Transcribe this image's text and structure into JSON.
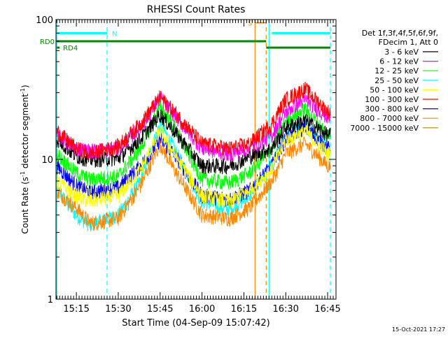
{
  "chart_data": {
    "type": "line",
    "title": "RHESSI Count Rates",
    "xlabel": "Start Time (04-Sep-09 15:07:42)",
    "ylabel_main": "Count Rate (s",
    "ylabel_sup1": "-1",
    "ylabel_mid": " detector segment",
    "ylabel_sup2": "-1",
    "ylabel_end": ")",
    "y_scale": "log",
    "ylim": [
      1,
      100
    ],
    "xlim": [
      "15:07:42",
      "16:48:00"
    ],
    "y_ticks": [
      {
        "value": 1,
        "label": "1"
      },
      {
        "value": 10,
        "label": "10"
      },
      {
        "value": 100,
        "label": "100"
      }
    ],
    "x_ticks": [
      {
        "time": "15:15",
        "label": "15:15"
      },
      {
        "time": "15:30",
        "label": "15:30"
      },
      {
        "time": "15:45",
        "label": "15:45"
      },
      {
        "time": "16:00",
        "label": "16:00"
      },
      {
        "time": "16:15",
        "label": "16:15"
      },
      {
        "time": "16:30",
        "label": "16:30"
      },
      {
        "time": "16:45",
        "label": "16:45"
      }
    ],
    "legend_header": [
      "Det 1f,3f,4f,5f,6f,9f,",
      "FDecim 1, Att 0"
    ],
    "legend_position": "right",
    "x_sample_times": [
      "15:08",
      "15:15",
      "15:20",
      "15:30",
      "15:38",
      "15:45",
      "15:50",
      "16:00",
      "16:10",
      "16:17",
      "16:25",
      "16:30",
      "16:37",
      "16:45"
    ],
    "series": [
      {
        "name": "3 - 6 keV",
        "color": "#000000",
        "values": [
          14,
          10.5,
          10,
          10.2,
          14,
          21,
          16,
          9,
          9,
          10.5,
          12,
          17,
          19,
          15
        ]
      },
      {
        "name": "6 - 12 keV",
        "color": "#ff00ff",
        "values": [
          15,
          12,
          11.5,
          12,
          17,
          28,
          21,
          12,
          11,
          12,
          15,
          22,
          27,
          20
        ]
      },
      {
        "name": "12 - 25 keV",
        "color": "#00ff00",
        "values": [
          11,
          8,
          7.2,
          7.6,
          12,
          24,
          17,
          7.2,
          6.8,
          8,
          12,
          19,
          23,
          15
        ]
      },
      {
        "name": "25 - 50 keV",
        "color": "#00ffff",
        "values": [
          6,
          4,
          3.4,
          4,
          7,
          18,
          12,
          5,
          4.4,
          5.5,
          9,
          15,
          18,
          12
        ]
      },
      {
        "name": "50 - 100 keV",
        "color": "#ffff00",
        "values": [
          7,
          5.5,
          5,
          5.5,
          8.5,
          16,
          11,
          5.5,
          5,
          6,
          8.5,
          14,
          16,
          11
        ]
      },
      {
        "name": "100 - 300 keV",
        "color": "#ff0000",
        "values": [
          16,
          12,
          11,
          12.5,
          18,
          28,
          22,
          13,
          12,
          13,
          18,
          27,
          32,
          22
        ]
      },
      {
        "name": "300 - 800 keV",
        "color": "#0000ff",
        "values": [
          9,
          6.5,
          5.8,
          6.3,
          9,
          14,
          11,
          5.5,
          5.2,
          6,
          9,
          14,
          17,
          12
        ]
      },
      {
        "name": "800 - 7000 keV",
        "color": "#ff8800",
        "values": [
          6,
          4.5,
          3.5,
          3.8,
          6.5,
          13,
          8.5,
          4,
          3.8,
          4.5,
          7,
          11,
          13,
          9
        ]
      },
      {
        "name": "7000 - 15000 keV",
        "color": "#aa8800",
        "values": []
      }
    ],
    "annotations": [
      {
        "text": "N",
        "color": "#00ffff",
        "time": "15:26",
        "y": 80
      },
      {
        "text": "S",
        "color": "#ff8800",
        "time": "16:18",
        "y": 95
      },
      {
        "text": "RD0",
        "color": "#008800",
        "y": 70
      },
      {
        "text": "RD4",
        "color": "#008800",
        "y": 63
      }
    ],
    "vertical_markers": [
      {
        "time": "15:08",
        "color": "#00ffff",
        "style": "solid"
      },
      {
        "time": "15:26",
        "color": "#00ffff",
        "style": "dashed"
      },
      {
        "time": "16:19",
        "color": "#ff8800",
        "style": "solid"
      },
      {
        "time": "16:23",
        "color": "#ff8800",
        "style": "dashed"
      },
      {
        "time": "16:24",
        "color": "#00ffff",
        "style": "solid"
      },
      {
        "time": "16:46",
        "color": "#00ffff",
        "style": "dashed"
      }
    ],
    "footer_date": "15-Oct-2021 17:27"
  }
}
